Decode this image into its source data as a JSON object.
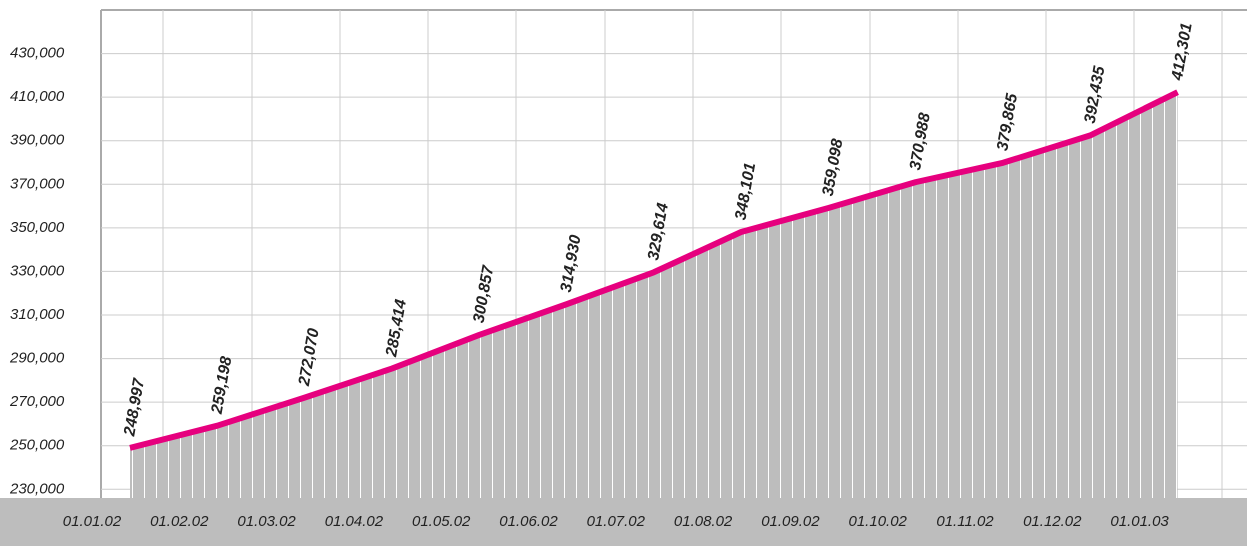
{
  "chart_data": {
    "type": "area",
    "categories": [
      "01.01.02",
      "01.02.02",
      "01.03.02",
      "01.04.02",
      "01.05.02",
      "01.06.02",
      "01.07.02",
      "01.08.02",
      "01.09.02",
      "01.10.02",
      "01.11.02",
      "01.12.02",
      "01.01.03"
    ],
    "values": [
      248997,
      259198,
      272070,
      285414,
      300857,
      314930,
      329614,
      348101,
      359098,
      370988,
      379865,
      392435,
      412301
    ],
    "value_labels": [
      "248,997",
      "259,198",
      "272,070",
      "285,414",
      "300,857",
      "314,930",
      "329,614",
      "348,101",
      "359,098",
      "370,988",
      "379,865",
      "392,435",
      "412,301"
    ],
    "color": "#e6007e",
    "fill": "#bdbdbd",
    "ylim": [
      226000,
      450000
    ],
    "yticks": [
      {
        "value": 230000,
        "label": "230,000"
      },
      {
        "value": 250000,
        "label": "250,000"
      },
      {
        "value": 270000,
        "label": "270,000"
      },
      {
        "value": 290000,
        "label": "290,000"
      },
      {
        "value": 310000,
        "label": "310,000"
      },
      {
        "value": 330000,
        "label": "330,000"
      },
      {
        "value": 350000,
        "label": "350,000"
      },
      {
        "value": 370000,
        "label": "370,000"
      },
      {
        "value": 390000,
        "label": "390,000"
      },
      {
        "value": 410000,
        "label": "410,000"
      },
      {
        "value": 430000,
        "label": "430,000"
      }
    ],
    "grid": true
  }
}
